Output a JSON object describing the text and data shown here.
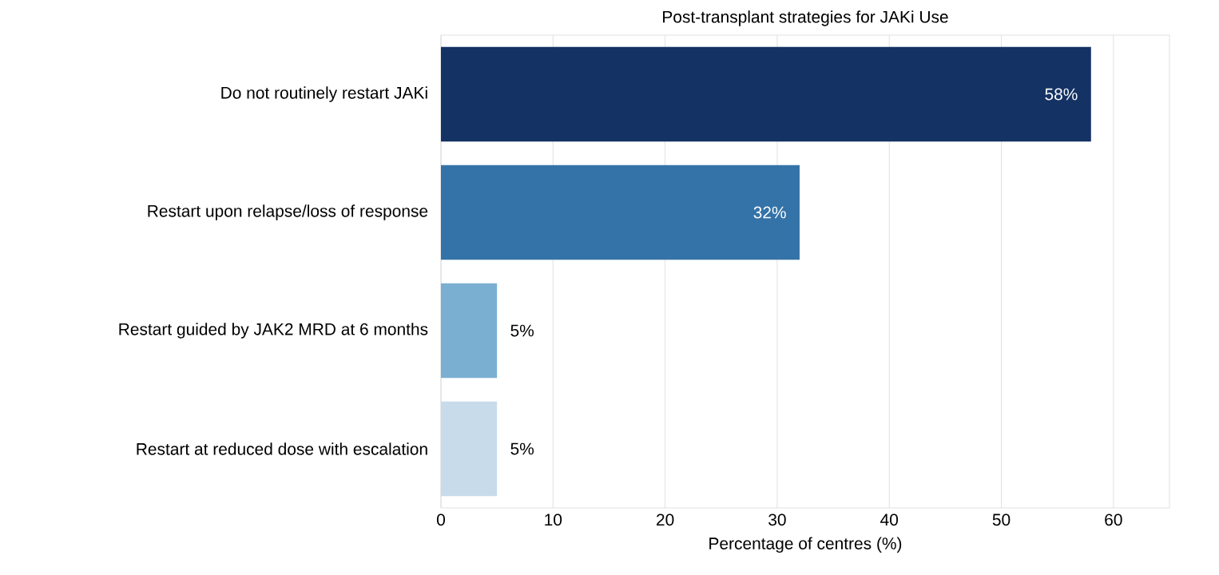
{
  "chart_data": {
    "type": "bar",
    "orientation": "horizontal",
    "title": "Post-transplant strategies for JAKi Use",
    "xlabel": "Percentage of centres (%)",
    "categories": [
      "Do not routinely restart JAKi",
      "Restart upon relapse/loss of response",
      "Restart guided by JAK2 MRD at 6 months",
      "Restart at reduced dose with escalation"
    ],
    "values": [
      58,
      32,
      5,
      5
    ],
    "colors": [
      "#143264",
      "#3473a8",
      "#7aafd1",
      "#c8dbeb"
    ],
    "value_labels": [
      "58%",
      "32%",
      "5%",
      "5%"
    ],
    "xlim": [
      0,
      65
    ],
    "xticks": [
      0,
      10,
      20,
      30,
      40,
      50,
      60
    ],
    "grid": "x"
  }
}
